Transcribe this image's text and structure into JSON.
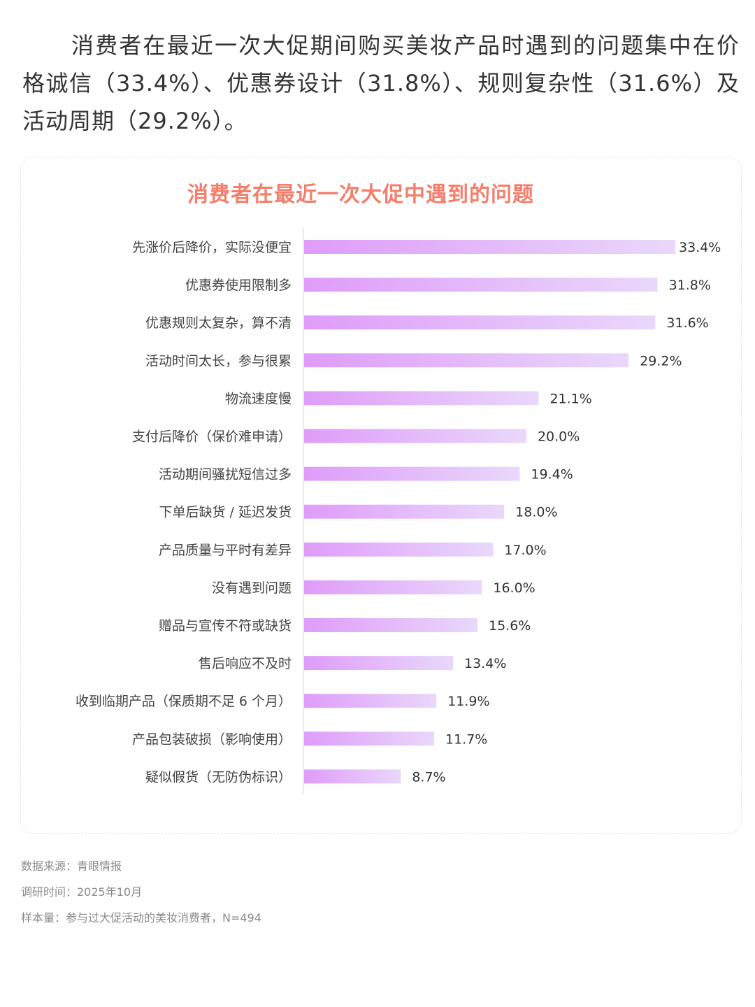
{
  "intro_text": "消费者在最近一次大促期间购买美妆产品时遇到的问题集中在价格诚信（33.4%）、优惠券设计（31.8%）、规则复杂性（31.6%）及活动周期（29.2%）。",
  "chart_data": {
    "type": "bar",
    "orientation": "horizontal",
    "title": "消费者在最近一次大促中遇到的问题",
    "xlabel": "",
    "ylabel": "",
    "xlim": [
      0,
      33.4
    ],
    "grid": false,
    "legend": "none",
    "categories": [
      "先涨价后降价，实际没便宜",
      "优惠券使用限制多",
      "优惠规则太复杂，算不清",
      "活动时间太长，参与很累",
      "物流速度慢",
      "支付后降价（保价难申请）",
      "活动期间骚扰短信过多",
      "下单后缺货 / 延迟发货",
      "产品质量与平时有差异",
      "没有遇到问题",
      "赠品与宣传不符或缺货",
      "售后响应不及时",
      "收到临期产品（保质期不足 6 个月）",
      "产品包装破损（影响使用）",
      "疑似假货（无防伪标识）"
    ],
    "values": [
      33.4,
      31.8,
      31.6,
      29.2,
      21.1,
      20.0,
      19.4,
      18.0,
      17.0,
      16.0,
      15.6,
      13.4,
      11.9,
      11.7,
      8.7
    ],
    "value_labels": [
      "33.4%",
      "31.8%",
      "31.6%",
      "29.2%",
      "21.1%",
      "20.0%",
      "19.4%",
      "18.0%",
      "17.0%",
      "16.0%",
      "15.6%",
      "13.4%",
      "11.9%",
      "11.7%",
      "8.7%"
    ],
    "colors": {
      "bar_start": "#df9cf9",
      "bar_end": "#e9d8fb",
      "title": "#f47e6b",
      "axis": "#e6e6e6"
    }
  },
  "footnotes": {
    "source": "数据来源：青眼情报",
    "time": "调研时间：2025年10月",
    "sample": "样本量：参与过大促活动的美妆消费者，N=494"
  }
}
